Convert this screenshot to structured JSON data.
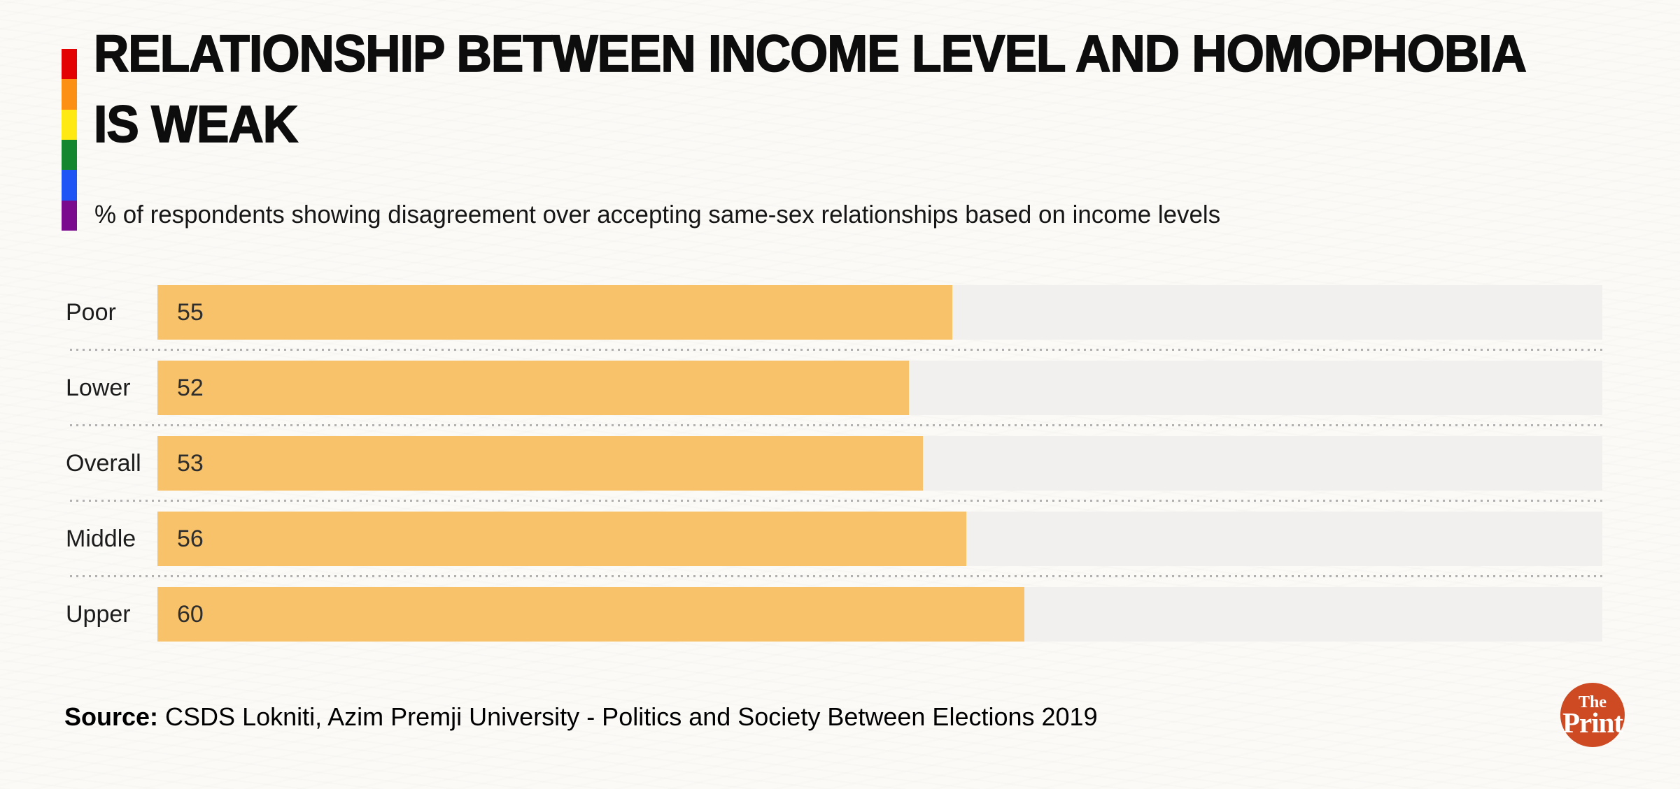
{
  "header": {
    "title_line1": "RELATIONSHIP BETWEEN INCOME LEVEL AND HOMOPHOBIA",
    "title_line2": "IS WEAK",
    "pride_stripe_colors": [
      "#E40303",
      "#FB9015",
      "#FFE913",
      "#13862F",
      "#1F55F5",
      "#7A0B8E"
    ]
  },
  "chart_data": {
    "type": "bar",
    "orientation": "horizontal",
    "title": "RELATIONSHIP BETWEEN INCOME LEVEL AND HOMOPHOBIA IS WEAK",
    "subtitle": "% of respondents showing disagreement over accepting same-sex relationships based on income levels",
    "categories": [
      "Poor",
      "Lower",
      "Overall",
      "Middle",
      "Upper"
    ],
    "values": [
      55,
      52,
      53,
      56,
      60
    ],
    "xlim": [
      0,
      100
    ],
    "bar_color": "#F8C26A",
    "track_color": "#F1F0EE",
    "value_labels": "inside-left",
    "grid": "dotted row separators",
    "legend": "none"
  },
  "footer": {
    "source_label": "Source:",
    "source_text": " CSDS Lokniti, Azim Premji University - Politics and Society Between Elections 2019",
    "logo": {
      "line1": "The",
      "line2": "Print",
      "bg_color": "#CD4A22",
      "text_color": "#FFFFFF"
    }
  }
}
